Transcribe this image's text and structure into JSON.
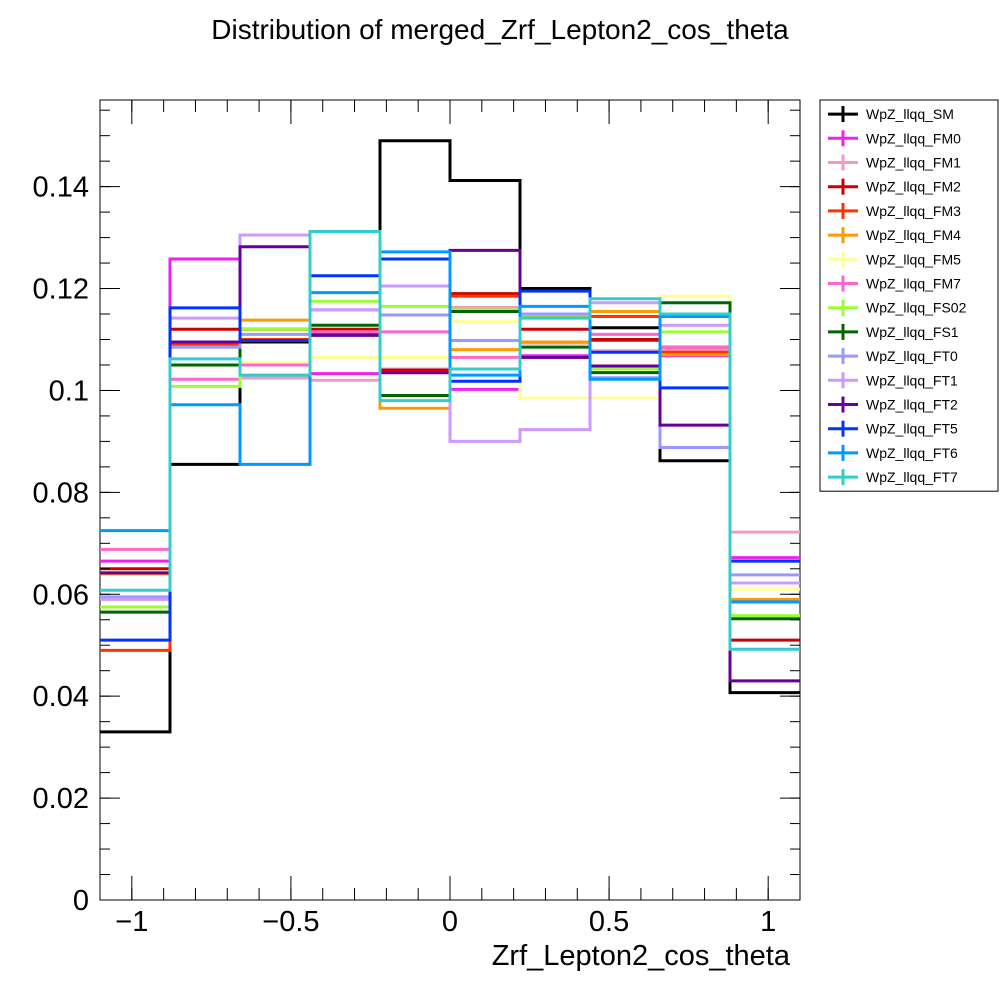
{
  "chart_data": {
    "type": "line",
    "style": "step-histogram",
    "title": "Distribution of merged_Zrf_Lepton2_cos_theta",
    "xlabel": "Zrf_Lepton2_cos_theta",
    "ylabel": "",
    "xlim": [
      -1.1,
      1.1
    ],
    "ylim": [
      0,
      0.157
    ],
    "grid": false,
    "legend_position": "right",
    "bin_edges": [
      -1.1,
      -0.88,
      -0.66,
      -0.44,
      -0.22,
      0.0,
      0.22,
      0.44,
      0.66,
      0.88,
      1.1
    ],
    "x_ticks": [
      {
        "value": -1,
        "label": "−1"
      },
      {
        "value": -0.5,
        "label": "−0.5"
      },
      {
        "value": 0,
        "label": "0"
      },
      {
        "value": 0.5,
        "label": "0.5"
      },
      {
        "value": 1,
        "label": "1"
      }
    ],
    "y_ticks": [
      {
        "value": 0,
        "label": "0"
      },
      {
        "value": 0.02,
        "label": "0.02"
      },
      {
        "value": 0.04,
        "label": "0.04"
      },
      {
        "value": 0.06,
        "label": "0.06"
      },
      {
        "value": 0.08,
        "label": "0.08"
      },
      {
        "value": 0.1,
        "label": "0.1"
      },
      {
        "value": 0.12,
        "label": "0.12"
      },
      {
        "value": 0.14,
        "label": "0.14"
      }
    ],
    "series": [
      {
        "name": "WpZ_llqq_SM",
        "color": "#000000",
        "values": [
          0.033,
          0.0855,
          0.1095,
          0.111,
          0.149,
          0.1412,
          0.12,
          0.1123,
          0.0862,
          0.0407
        ]
      },
      {
        "name": "WpZ_llqq_FM0",
        "color": "#ee22ee",
        "values": [
          0.0665,
          0.1258,
          0.1025,
          0.1033,
          0.1035,
          0.1002,
          0.1068,
          0.1098,
          0.1068,
          0.0672
        ]
      },
      {
        "name": "WpZ_llqq_FM1",
        "color": "#f49ac2",
        "values": [
          0.0642,
          0.1095,
          0.1025,
          0.102,
          0.1042,
          0.1163,
          0.1093,
          0.1078,
          0.108,
          0.0722
        ]
      },
      {
        "name": "WpZ_llqq_FM2",
        "color": "#cc0000",
        "values": [
          0.065,
          0.112,
          0.112,
          0.112,
          0.104,
          0.119,
          0.112,
          0.11,
          0.1085,
          0.051
        ]
      },
      {
        "name": "WpZ_llqq_FM3",
        "color": "#ff3300",
        "values": [
          0.049,
          0.109,
          0.11,
          0.1115,
          0.1035,
          0.1185,
          0.1145,
          0.1145,
          0.1075,
          0.0585
        ]
      },
      {
        "name": "WpZ_llqq_FM4",
        "color": "#ff9900",
        "values": [
          0.064,
          0.1085,
          0.1138,
          0.1115,
          0.0965,
          0.108,
          0.1095,
          0.1155,
          0.107,
          0.059
        ]
      },
      {
        "name": "WpZ_llqq_FM5",
        "color": "#ffff99",
        "values": [
          0.0575,
          0.105,
          0.1055,
          0.1065,
          0.1065,
          0.1135,
          0.0985,
          0.0985,
          0.1185,
          0.061
        ]
      },
      {
        "name": "WpZ_llqq_FM7",
        "color": "#ff66cc",
        "values": [
          0.0688,
          0.1022,
          0.105,
          0.1115,
          0.1115,
          0.1065,
          0.1065,
          0.111,
          0.1085,
          0.0665
        ]
      },
      {
        "name": "WpZ_llqq_FS02",
        "color": "#99ff33",
        "values": [
          0.0575,
          0.1008,
          0.112,
          0.1175,
          0.1165,
          0.1158,
          0.1148,
          0.1042,
          0.1115,
          0.0558
        ]
      },
      {
        "name": "WpZ_llqq_FS1",
        "color": "#006600",
        "values": [
          0.0565,
          0.105,
          0.1098,
          0.1128,
          0.099,
          0.1155,
          0.1085,
          0.1035,
          0.1172,
          0.0552
        ]
      },
      {
        "name": "WpZ_llqq_FT0",
        "color": "#9999ff",
        "values": [
          0.0595,
          0.1085,
          0.111,
          0.1158,
          0.1148,
          0.1098,
          0.115,
          0.1025,
          0.0888,
          0.0638
        ]
      },
      {
        "name": "WpZ_llqq_FT1",
        "color": "#cc99ff",
        "values": [
          0.059,
          0.1142,
          0.1305,
          0.1158,
          0.1205,
          0.09,
          0.0923,
          0.1172,
          0.1128,
          0.0622
        ]
      },
      {
        "name": "WpZ_llqq_FT2",
        "color": "#660099",
        "values": [
          0.0642,
          0.1095,
          0.1282,
          0.1108,
          0.1035,
          0.1275,
          0.1065,
          0.1048,
          0.0932,
          0.043
        ]
      },
      {
        "name": "WpZ_llqq_FT5",
        "color": "#0033ff",
        "values": [
          0.051,
          0.1162,
          0.1098,
          0.1225,
          0.1258,
          0.1018,
          0.1195,
          0.1075,
          0.1005,
          0.0665
        ]
      },
      {
        "name": "WpZ_llqq_FT6",
        "color": "#0099ff",
        "values": [
          0.0725,
          0.0972,
          0.0855,
          0.1192,
          0.1272,
          0.103,
          0.1165,
          0.1022,
          0.1145,
          0.0585
        ]
      },
      {
        "name": "WpZ_llqq_FT7",
        "color": "#33cccc",
        "values": [
          0.0608,
          0.1062,
          0.103,
          0.1312,
          0.098,
          0.1042,
          0.1142,
          0.118,
          0.115,
          0.0492
        ]
      }
    ]
  }
}
